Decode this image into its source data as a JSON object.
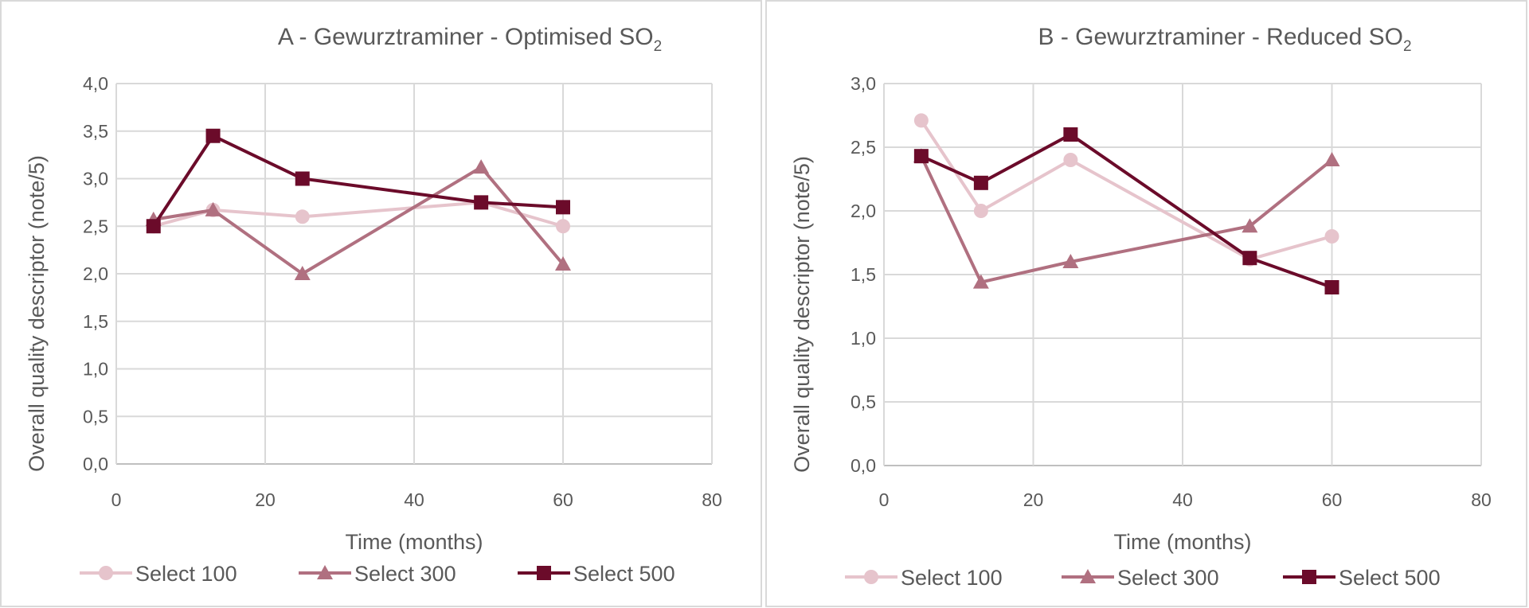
{
  "chart_data": [
    {
      "type": "line",
      "title": "A - Gewurztraminer - Optimised SO",
      "title_subscript": "2",
      "xlabel": "Time (months)",
      "ylabel": "Overall quality descriptor  (note/5)",
      "xlim": [
        0,
        80
      ],
      "ylim": [
        0,
        4
      ],
      "xticks": [
        "0",
        "20",
        "40",
        "60",
        "80"
      ],
      "yticks": [
        "0,0",
        "0,5",
        "1,0",
        "1,5",
        "2,0",
        "2,5",
        "3,0",
        "3,5",
        "4,0"
      ],
      "grid": true,
      "legend_position": "bottom",
      "series": [
        {
          "name": "Select 100",
          "marker": "circle",
          "color": "#e6c4cc",
          "x": [
            5,
            13,
            25,
            49,
            60
          ],
          "y": [
            2.5,
            2.67,
            2.6,
            2.75,
            2.5
          ]
        },
        {
          "name": "Select 300",
          "marker": "triangle",
          "color": "#b07080",
          "x": [
            5,
            13,
            25,
            49,
            60
          ],
          "y": [
            2.57,
            2.67,
            2.0,
            3.12,
            2.1
          ]
        },
        {
          "name": "Select 500",
          "marker": "square",
          "color": "#6b0b2a",
          "x": [
            5,
            13,
            25,
            49,
            60
          ],
          "y": [
            2.5,
            3.45,
            3.0,
            2.75,
            2.7
          ]
        }
      ]
    },
    {
      "type": "line",
      "title": "B - Gewurztraminer - Reduced SO",
      "title_subscript": "2",
      "xlabel": "Time (months)",
      "ylabel": "Overall quality descriptor  (note/5)",
      "xlim": [
        0,
        80
      ],
      "ylim": [
        0,
        3
      ],
      "xticks": [
        "0",
        "20",
        "40",
        "60",
        "80"
      ],
      "yticks": [
        "0,0",
        "0,5",
        "1,0",
        "1,5",
        "2,0",
        "2,5",
        "3,0"
      ],
      "grid": true,
      "legend_position": "bottom",
      "series": [
        {
          "name": "Select 100",
          "marker": "circle",
          "color": "#e6c4cc",
          "x": [
            5,
            13,
            25,
            49,
            60
          ],
          "y": [
            2.71,
            2.0,
            2.4,
            1.62,
            1.8
          ]
        },
        {
          "name": "Select 300",
          "marker": "triangle",
          "color": "#b07080",
          "x": [
            5,
            13,
            25,
            49,
            60
          ],
          "y": [
            2.43,
            1.44,
            1.6,
            1.88,
            2.4
          ]
        },
        {
          "name": "Select 500",
          "marker": "square",
          "color": "#6b0b2a",
          "x": [
            5,
            13,
            25,
            49,
            60
          ],
          "y": [
            2.43,
            2.22,
            2.6,
            1.63,
            1.4
          ]
        }
      ]
    }
  ]
}
